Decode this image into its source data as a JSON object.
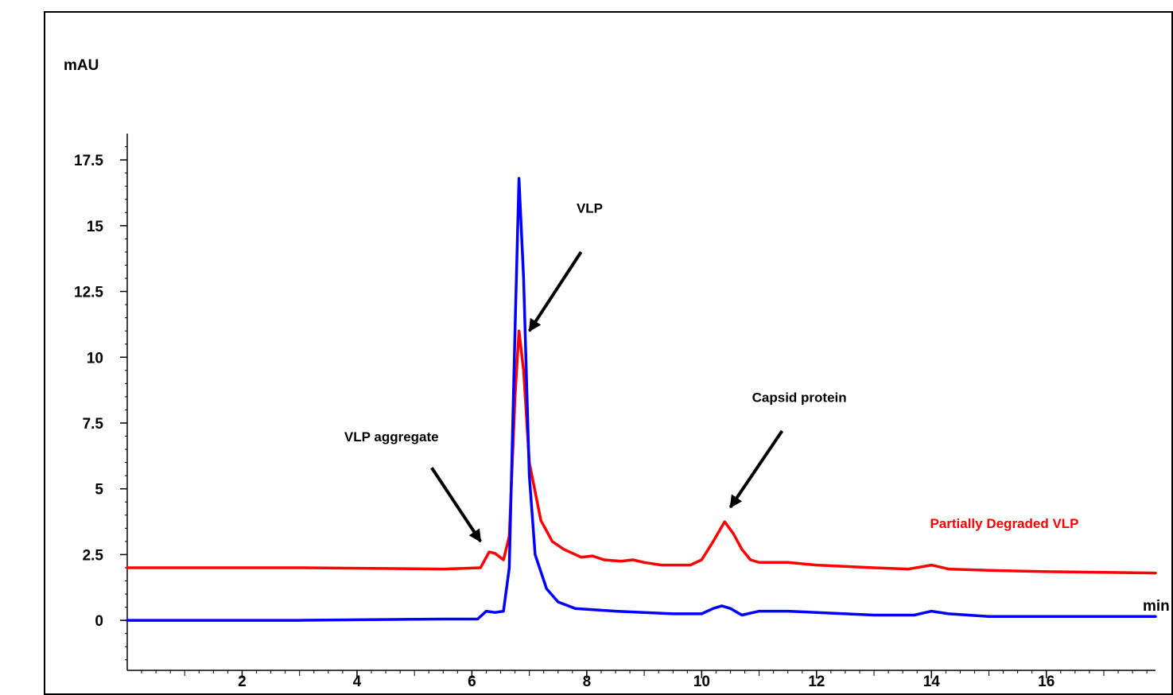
{
  "chart_data": {
    "type": "line",
    "ylabel": "mAU",
    "xlabel": "min",
    "xlim": [
      0,
      17.9
    ],
    "ylim": [
      -1.9,
      18.5
    ],
    "xticks": [
      2,
      4,
      6,
      8,
      10,
      12,
      14,
      16
    ],
    "yticks": [
      {
        "value": 0,
        "label": "0"
      },
      {
        "value": 2.5,
        "label": "2.5"
      },
      {
        "value": 5,
        "label": "5"
      },
      {
        "value": 7.5,
        "label": "7.5"
      },
      {
        "value": 10,
        "label": "10"
      },
      {
        "value": 12.5,
        "label": "12.5"
      },
      {
        "value": 15,
        "label": "15"
      },
      {
        "value": 17.5,
        "label": "17.5"
      }
    ],
    "series": [
      {
        "name": "Partially Degraded VLP",
        "color": "#ff0000",
        "points": [
          [
            0,
            2.0
          ],
          [
            3,
            2.0
          ],
          [
            5.5,
            1.95
          ],
          [
            6.15,
            2.0
          ],
          [
            6.3,
            2.6
          ],
          [
            6.4,
            2.55
          ],
          [
            6.55,
            2.3
          ],
          [
            6.65,
            3.2
          ],
          [
            6.75,
            8.5
          ],
          [
            6.82,
            11.0
          ],
          [
            6.9,
            9.5
          ],
          [
            7.0,
            6.0
          ],
          [
            7.2,
            3.8
          ],
          [
            7.4,
            3.0
          ],
          [
            7.6,
            2.7
          ],
          [
            7.9,
            2.4
          ],
          [
            8.1,
            2.45
          ],
          [
            8.3,
            2.3
          ],
          [
            8.6,
            2.25
          ],
          [
            8.8,
            2.3
          ],
          [
            9.0,
            2.2
          ],
          [
            9.3,
            2.1
          ],
          [
            9.8,
            2.1
          ],
          [
            10.0,
            2.3
          ],
          [
            10.2,
            3.0
          ],
          [
            10.4,
            3.75
          ],
          [
            10.55,
            3.3
          ],
          [
            10.7,
            2.7
          ],
          [
            10.85,
            2.3
          ],
          [
            11.0,
            2.2
          ],
          [
            11.5,
            2.2
          ],
          [
            12.0,
            2.1
          ],
          [
            13.0,
            2.0
          ],
          [
            13.6,
            1.95
          ],
          [
            14.0,
            2.1
          ],
          [
            14.3,
            1.95
          ],
          [
            15.0,
            1.9
          ],
          [
            16.0,
            1.85
          ],
          [
            17.9,
            1.8
          ]
        ]
      },
      {
        "name": "",
        "color": "#0000ff",
        "points": [
          [
            0,
            0.0
          ],
          [
            3,
            0.0
          ],
          [
            5.5,
            0.05
          ],
          [
            6.1,
            0.05
          ],
          [
            6.25,
            0.35
          ],
          [
            6.4,
            0.3
          ],
          [
            6.55,
            0.35
          ],
          [
            6.65,
            2.0
          ],
          [
            6.75,
            11.0
          ],
          [
            6.82,
            16.8
          ],
          [
            6.9,
            13.0
          ],
          [
            7.0,
            5.5
          ],
          [
            7.1,
            2.5
          ],
          [
            7.3,
            1.2
          ],
          [
            7.5,
            0.7
          ],
          [
            7.8,
            0.45
          ],
          [
            8.5,
            0.35
          ],
          [
            9.5,
            0.25
          ],
          [
            10.0,
            0.25
          ],
          [
            10.2,
            0.45
          ],
          [
            10.35,
            0.55
          ],
          [
            10.5,
            0.45
          ],
          [
            10.7,
            0.2
          ],
          [
            11.0,
            0.35
          ],
          [
            11.5,
            0.35
          ],
          [
            12.0,
            0.3
          ],
          [
            13.0,
            0.2
          ],
          [
            13.7,
            0.2
          ],
          [
            14.0,
            0.35
          ],
          [
            14.3,
            0.25
          ],
          [
            15.0,
            0.15
          ],
          [
            16.0,
            0.15
          ],
          [
            17.9,
            0.15
          ]
        ]
      }
    ],
    "annotations": [
      {
        "text": "VLP",
        "label_x": 8.05,
        "label_y": 15.5,
        "arrow_from": [
          7.9,
          14.0
        ],
        "arrow_to": [
          7.0,
          11.0
        ]
      },
      {
        "text": "VLP aggregate",
        "label_x": 4.6,
        "label_y": 6.8,
        "arrow_from": [
          5.3,
          5.8
        ],
        "arrow_to": [
          6.15,
          3.0
        ]
      },
      {
        "text": "Capsid protein",
        "label_x": 11.7,
        "label_y": 8.3,
        "arrow_from": [
          11.4,
          7.2
        ],
        "arrow_to": [
          10.5,
          4.3
        ]
      }
    ],
    "legend": [
      {
        "text": "Partially Degraded VLP",
        "color": "#ff0000",
        "placement": "right, above red trace"
      }
    ]
  }
}
